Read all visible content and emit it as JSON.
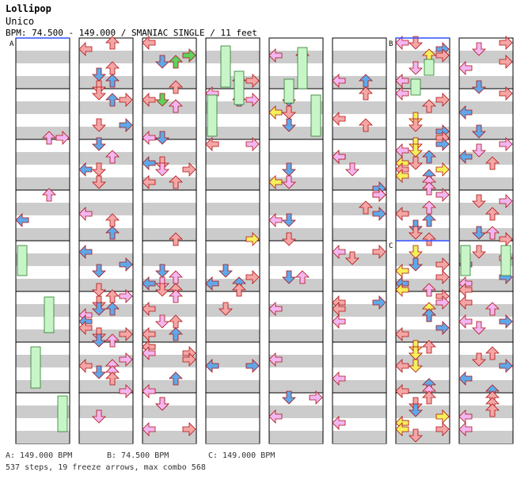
{
  "song": {
    "title": "Lollipop",
    "artist": "Unico",
    "info": "BPM: 74.500 - 149.000 / SMANIAC SINGLE / 11 feet"
  },
  "bpm_legend": [
    {
      "mark": "A",
      "text": "A: 149.000 BPM"
    },
    {
      "mark": "B",
      "text": "B: 74.500 BPM"
    },
    {
      "mark": "C",
      "text": "C: 149.000 BPM"
    }
  ],
  "stats": "537 steps, 19 freeze arrows, max combo 568",
  "colors": {
    "quarter": "#f4a6a6",
    "eighth": "#5fa8ea",
    "sixteenth": "#f2b6f2",
    "twelfth": "#f5f05a",
    "twentyfourth": "#5dd35d",
    "freeze": "#c8f5c8",
    "stripe": "#cccccc"
  },
  "bpm_change_marks": [
    {
      "label": "A",
      "column": 1
    },
    {
      "label": "B",
      "column": 7
    },
    {
      "label": "C",
      "column": 7
    }
  ],
  "columns": 8,
  "measures_per_column": 8
}
